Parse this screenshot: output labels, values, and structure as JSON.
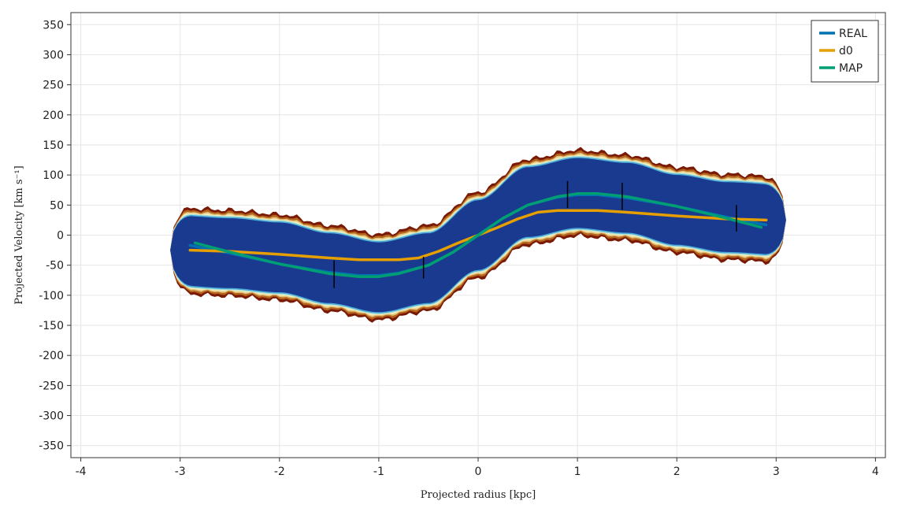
{
  "chart_data": {
    "type": "line",
    "xlabel": "Projected radius [kpc]",
    "ylabel": "Projected Velocity [km s⁻¹]",
    "xlim": [
      -4.1,
      4.1
    ],
    "ylim": [
      -370,
      370
    ],
    "x_ticks": [
      -4,
      -3,
      -2,
      -1,
      0,
      1,
      2,
      3,
      4
    ],
    "y_ticks": [
      350,
      300,
      250,
      200,
      150,
      100,
      50,
      0,
      -50,
      -100,
      -150,
      -200,
      -250,
      -300,
      -350
    ],
    "x_tick_labels": [
      "-4",
      "-3",
      "-2",
      "-1",
      "0",
      "1",
      "2",
      "3",
      "4"
    ],
    "y_tick_labels": [
      "350",
      "300",
      "250",
      "200",
      "150",
      "100",
      "50",
      "0",
      "-50",
      "-100",
      "-150",
      "-200",
      "-250",
      "-300",
      "-350"
    ],
    "grid": true,
    "legend_position": "top-right",
    "background_map": {
      "description_color_scale": [
        "#1a3a8f",
        "#4aa8d8",
        "#a8e0d8",
        "#f2eebc",
        "#e3c07a",
        "#b5651d",
        "#7a1a05"
      ],
      "centerline": {
        "x": [
          -3.1,
          -2.5,
          -2.0,
          -1.5,
          -1.0,
          -0.5,
          0.0,
          0.5,
          1.0,
          1.5,
          2.0,
          2.5,
          3.1
        ],
        "y": [
          -25,
          -30,
          -37,
          -55,
          -70,
          -55,
          0,
          55,
          70,
          62,
          42,
          30,
          25
        ]
      },
      "half_width": 58
    },
    "series": [
      {
        "name": "REAL",
        "color": "#0072b2",
        "x": [
          -2.9,
          -2.5,
          -2.0,
          -1.5,
          -1.2,
          -1.0,
          -0.8,
          -0.5,
          -0.25,
          0.0,
          0.25,
          0.5,
          0.8,
          1.0,
          1.2,
          1.5,
          2.0,
          2.5,
          2.9
        ],
        "y": [
          -17,
          -30,
          -48,
          -62,
          -67,
          -67,
          -63,
          -50,
          -28,
          0,
          28,
          50,
          63,
          67,
          67,
          62,
          48,
          30,
          17
        ]
      },
      {
        "name": "d0",
        "color": "#e69f00",
        "x": [
          -2.9,
          -2.5,
          -2.0,
          -1.5,
          -1.2,
          -1.0,
          -0.8,
          -0.6,
          -0.4,
          -0.2,
          0.0,
          0.2,
          0.4,
          0.6,
          0.8,
          1.0,
          1.2,
          1.5,
          2.0,
          2.5,
          2.9
        ],
        "y": [
          -25,
          -27,
          -32,
          -38,
          -41,
          -41,
          -41,
          -38,
          -27,
          -13,
          0,
          13,
          27,
          38,
          41,
          41,
          41,
          38,
          32,
          27,
          25
        ]
      },
      {
        "name": "MAP",
        "color": "#009e73",
        "x": [
          -2.85,
          -2.5,
          -2.0,
          -1.5,
          -1.2,
          -1.0,
          -0.8,
          -0.5,
          -0.25,
          0.0,
          0.25,
          0.5,
          0.8,
          1.0,
          1.2,
          1.5,
          2.0,
          2.5,
          2.85
        ],
        "y": [
          -13,
          -28,
          -48,
          -64,
          -69,
          -69,
          -64,
          -50,
          -28,
          0,
          28,
          50,
          64,
          69,
          69,
          64,
          48,
          28,
          13
        ]
      }
    ],
    "markers": [
      {
        "x": -1.45,
        "y_low": -88,
        "y_high": -42
      },
      {
        "x": -0.55,
        "y_low": -72,
        "y_high": -36
      },
      {
        "x": 0.9,
        "y_low": 45,
        "y_high": 90
      },
      {
        "x": 1.45,
        "y_low": 42,
        "y_high": 87
      },
      {
        "x": 2.6,
        "y_low": 6,
        "y_high": 50
      }
    ]
  }
}
